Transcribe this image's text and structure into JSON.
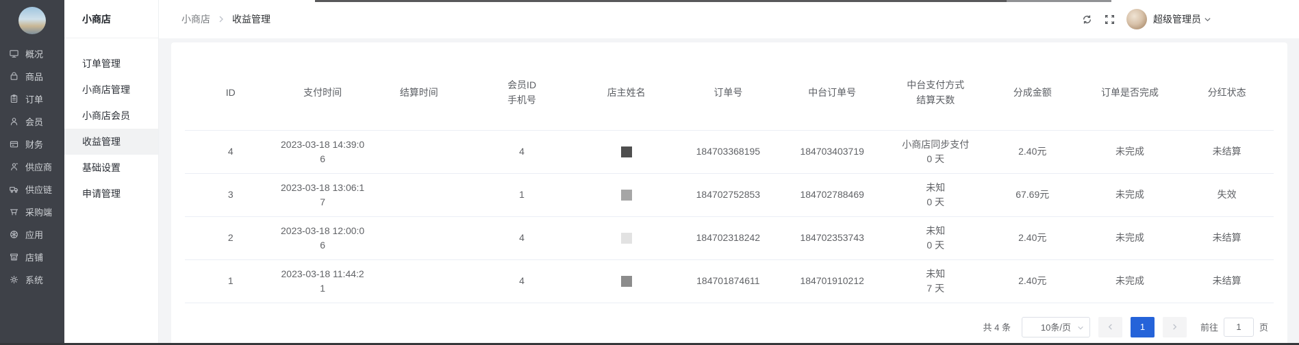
{
  "sidebar": {
    "items": [
      {
        "label": "概况",
        "icon": "dashboard"
      },
      {
        "label": "商品",
        "icon": "goods"
      },
      {
        "label": "订单",
        "icon": "orders"
      },
      {
        "label": "会员",
        "icon": "members"
      },
      {
        "label": "财务",
        "icon": "finance"
      },
      {
        "label": "供应商",
        "icon": "supplier"
      },
      {
        "label": "供应链",
        "icon": "supply-chain"
      },
      {
        "label": "采购端",
        "icon": "procurement"
      },
      {
        "label": "应用",
        "icon": "apps"
      },
      {
        "label": "店铺",
        "icon": "shop"
      },
      {
        "label": "系统",
        "icon": "system"
      }
    ]
  },
  "submenu": {
    "title": "小商店",
    "items": [
      {
        "label": "订单管理",
        "active": false
      },
      {
        "label": "小商店管理",
        "active": false
      },
      {
        "label": "小商店会员",
        "active": false
      },
      {
        "label": "收益管理",
        "active": true
      },
      {
        "label": "基础设置",
        "active": false
      },
      {
        "label": "申请管理",
        "active": false
      }
    ]
  },
  "header": {
    "breadcrumb_parent": "小商店",
    "breadcrumb_current": "收益管理",
    "user_name": "超级管理员"
  },
  "table": {
    "columns": [
      "ID",
      "支付时间",
      "结算时间",
      "会员ID\n手机号",
      "店主姓名",
      "订单号",
      "中台订单号",
      "中台支付方式\n结算天数",
      "分成金额",
      "订单是否完成",
      "分红状态"
    ],
    "rows": [
      {
        "id": "4",
        "pay_time": "2023-03-18 14:39:0\n6",
        "settle_time": "",
        "member_id": "4",
        "owner_masked_color": "#4f4f4f",
        "order_no": "184703368195",
        "mid_order_no": "184703403719",
        "pay_method": "小商店同步支付\n0 天",
        "share_amount": "2.40元",
        "order_done": "未完成",
        "dividend_status": "未结算"
      },
      {
        "id": "3",
        "pay_time": "2023-03-18 13:06:1\n7",
        "settle_time": "",
        "member_id": "1",
        "owner_masked_color": "#a6a6a6",
        "order_no": "184702752853",
        "mid_order_no": "184702788469",
        "pay_method": "未知\n0 天",
        "share_amount": "67.69元",
        "order_done": "未完成",
        "dividend_status": "失效"
      },
      {
        "id": "2",
        "pay_time": "2023-03-18 12:00:0\n6",
        "settle_time": "",
        "member_id": "4",
        "owner_masked_color": "#e2e2e2",
        "order_no": "184702318242",
        "mid_order_no": "184702353743",
        "pay_method": "未知\n0 天",
        "share_amount": "2.40元",
        "order_done": "未完成",
        "dividend_status": "未结算"
      },
      {
        "id": "1",
        "pay_time": "2023-03-18 11:44:2\n1",
        "settle_time": "",
        "member_id": "4",
        "owner_masked_color": "#8c8c8c",
        "order_no": "184701874611",
        "mid_order_no": "184701910212",
        "pay_method": "未知\n7 天",
        "share_amount": "2.40元",
        "order_done": "未完成",
        "dividend_status": "未结算"
      }
    ]
  },
  "pagination": {
    "total_text": "共 4 条",
    "page_size": "10条/页",
    "current_page": "1",
    "jump_prefix": "前往",
    "jump_value": "1",
    "jump_suffix": "页",
    "active_color": "#2563d9"
  }
}
